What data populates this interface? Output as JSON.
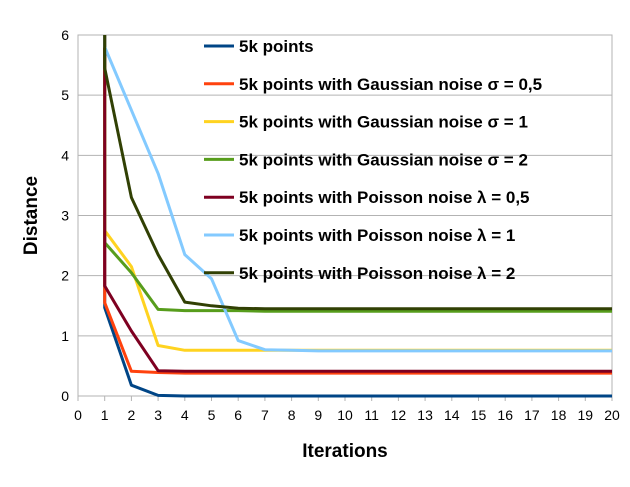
{
  "chart_data": {
    "type": "line",
    "xlabel": "Iterations",
    "ylabel": "Distance",
    "xlim": [
      0,
      20
    ],
    "ylim": [
      0,
      6
    ],
    "xticks": [
      0,
      1,
      2,
      3,
      4,
      5,
      6,
      7,
      8,
      9,
      10,
      11,
      12,
      13,
      14,
      15,
      16,
      17,
      18,
      19,
      20
    ],
    "yticks": [
      0,
      1,
      2,
      3,
      4,
      5,
      6
    ],
    "grid": "horizontal",
    "legend_position": "top-right-inside",
    "series": [
      {
        "name": "5k points",
        "color": "#004586",
        "x": [
          1,
          1,
          2,
          3,
          4,
          5,
          6,
          7,
          8,
          9,
          10,
          11,
          12,
          13,
          14,
          15,
          16,
          17,
          18,
          19,
          20
        ],
        "y": [
          6,
          1.47,
          0.18,
          0.01,
          0.0,
          0.0,
          0.0,
          0.0,
          0.0,
          0.0,
          0.0,
          0.0,
          0.0,
          0.0,
          0.0,
          0.0,
          0.0,
          0.0,
          0.0,
          0.0,
          0.0
        ]
      },
      {
        "name": "5k points with Gaussian noise σ = 0,5",
        "color": "#ff420e",
        "x": [
          1,
          1,
          2,
          3,
          4,
          5,
          6,
          7,
          8,
          9,
          10,
          11,
          12,
          13,
          14,
          15,
          16,
          17,
          18,
          19,
          20
        ],
        "y": [
          6,
          1.55,
          0.41,
          0.39,
          0.38,
          0.38,
          0.38,
          0.38,
          0.38,
          0.38,
          0.38,
          0.38,
          0.38,
          0.38,
          0.38,
          0.38,
          0.38,
          0.38,
          0.38,
          0.38,
          0.38
        ]
      },
      {
        "name": "5k points with Gaussian noise σ = 1",
        "color": "#ffd320",
        "x": [
          1,
          1,
          2,
          3,
          4,
          5,
          6,
          7,
          8,
          9,
          10,
          11,
          12,
          13,
          14,
          15,
          16,
          17,
          18,
          19,
          20
        ],
        "y": [
          6,
          2.75,
          2.15,
          0.84,
          0.76,
          0.76,
          0.76,
          0.76,
          0.76,
          0.76,
          0.76,
          0.76,
          0.76,
          0.76,
          0.76,
          0.76,
          0.76,
          0.76,
          0.76,
          0.76,
          0.76
        ]
      },
      {
        "name": "5k points with Gaussian noise σ = 2",
        "color": "#579d1c",
        "x": [
          1,
          1,
          2,
          3,
          4,
          5,
          6,
          7,
          8,
          9,
          10,
          11,
          12,
          13,
          14,
          15,
          16,
          17,
          18,
          19,
          20
        ],
        "y": [
          6,
          2.55,
          2.05,
          1.44,
          1.42,
          1.42,
          1.42,
          1.41,
          1.41,
          1.41,
          1.41,
          1.41,
          1.41,
          1.41,
          1.41,
          1.41,
          1.41,
          1.41,
          1.41,
          1.41,
          1.41
        ]
      },
      {
        "name": "5k points with Poisson noise λ = 0,5",
        "color": "#7e0021",
        "x": [
          1,
          1,
          2,
          3,
          4,
          5,
          6,
          7,
          8,
          9,
          10,
          11,
          12,
          13,
          14,
          15,
          16,
          17,
          18,
          19,
          20
        ],
        "y": [
          6,
          1.83,
          1.08,
          0.42,
          0.41,
          0.41,
          0.41,
          0.41,
          0.41,
          0.41,
          0.41,
          0.41,
          0.41,
          0.41,
          0.41,
          0.41,
          0.41,
          0.41,
          0.41,
          0.41,
          0.41
        ]
      },
      {
        "name": "5k points with Poisson noise λ = 1",
        "color": "#83caff",
        "x": [
          1,
          1,
          2,
          3,
          4,
          5,
          6,
          7,
          8,
          9,
          10,
          11,
          12,
          13,
          14,
          15,
          16,
          17,
          18,
          19,
          20
        ],
        "y": [
          6,
          5.8,
          4.75,
          3.7,
          2.35,
          1.95,
          0.92,
          0.77,
          0.76,
          0.75,
          0.75,
          0.75,
          0.75,
          0.75,
          0.75,
          0.75,
          0.75,
          0.75,
          0.75,
          0.75,
          0.75
        ]
      },
      {
        "name": "5k points with Poisson noise λ = 2",
        "color": "#314004",
        "x": [
          1,
          1,
          2,
          3,
          4,
          5,
          6,
          7,
          8,
          9,
          10,
          11,
          12,
          13,
          14,
          15,
          16,
          17,
          18,
          19,
          20
        ],
        "y": [
          6,
          5.45,
          3.3,
          2.35,
          1.56,
          1.5,
          1.46,
          1.45,
          1.45,
          1.45,
          1.45,
          1.45,
          1.45,
          1.45,
          1.45,
          1.45,
          1.45,
          1.45,
          1.45,
          1.45,
          1.45
        ]
      }
    ]
  }
}
